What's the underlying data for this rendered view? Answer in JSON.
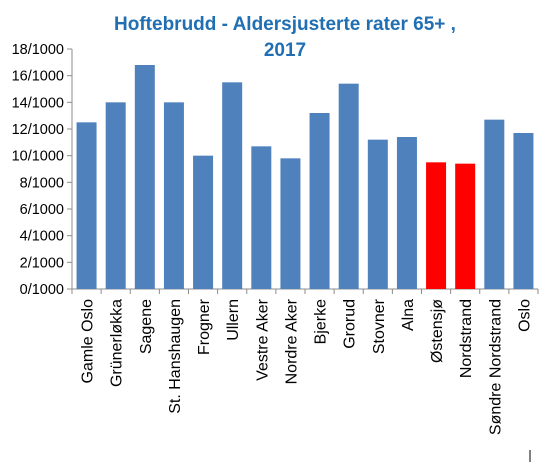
{
  "chart_data": {
    "type": "bar",
    "title_lines": [
      "Hoftebrudd - Aldersjusterte rater 65+ ,",
      "2017"
    ],
    "xlabel": "",
    "ylabel": "",
    "ylim": [
      0,
      18
    ],
    "yticks": [
      0,
      2,
      4,
      6,
      8,
      10,
      12,
      14,
      16,
      18
    ],
    "ytick_labels": [
      "0/1000",
      "2/1000",
      "4/1000",
      "6/1000",
      "8/1000",
      "10/1000",
      "12/1000",
      "14/1000",
      "16/1000",
      "18/1000"
    ],
    "grid": false,
    "legend": "none",
    "categories": [
      "Gamle Oslo",
      "Grünerløkka",
      "Sagene",
      "St. Hanshaugen",
      "Frogner",
      "Ullern",
      "Vestre Aker",
      "Nordre Aker",
      "Bjerke",
      "Grorud",
      "Stovner",
      "Alna",
      "Østensjø",
      "Nordstrand",
      "Søndre Nordstrand",
      "Oslo"
    ],
    "values": [
      12.5,
      14.0,
      16.8,
      14.0,
      10.0,
      15.5,
      10.7,
      9.8,
      13.2,
      15.4,
      11.2,
      11.4,
      9.5,
      9.4,
      12.7,
      11.7
    ],
    "colors": {
      "default": "#4F81BD",
      "highlight": "#FF0000",
      "title": "#1F6FB2"
    },
    "highlighted": [
      "Østensjø",
      "Nordstrand"
    ]
  }
}
